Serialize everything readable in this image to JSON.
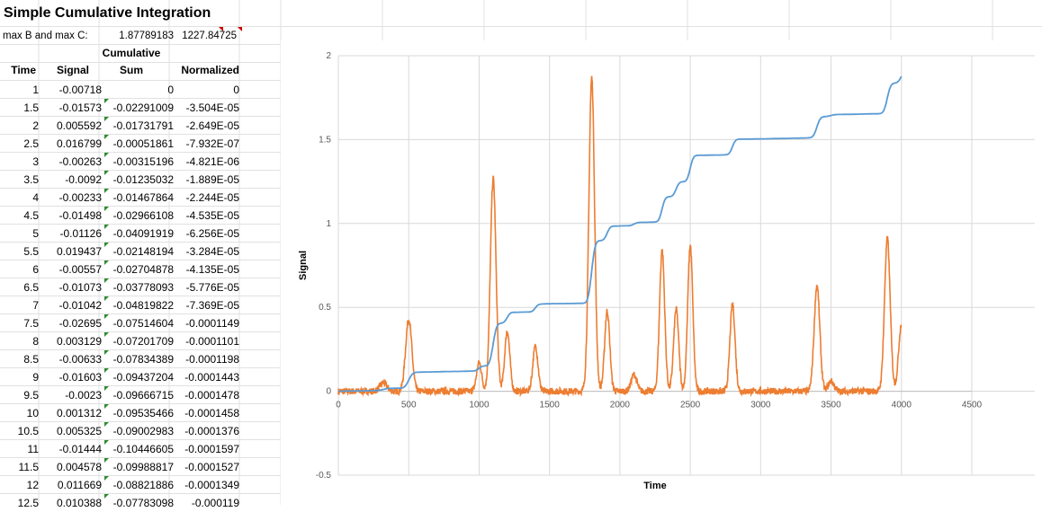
{
  "sheet": {
    "title": "Simple Cumulative Integration",
    "max_label": "max B and max C:",
    "max_b": "1.87789183",
    "max_c": "1227.84725",
    "headers": {
      "time": "Time",
      "signal": "Signal",
      "cum_line1": "Cumulative",
      "cum_line2": "Sum",
      "normalized": "Normalized"
    },
    "rows": [
      [
        "1",
        "-0.00718",
        "0",
        "0"
      ],
      [
        "1.5",
        "-0.01573",
        "-0.02291009",
        "-3.504E-05"
      ],
      [
        "2",
        "0.005592",
        "-0.01731791",
        "-2.649E-05"
      ],
      [
        "2.5",
        "0.016799",
        "-0.00051861",
        "-7.932E-07"
      ],
      [
        "3",
        "-0.00263",
        "-0.00315196",
        "-4.821E-06"
      ],
      [
        "3.5",
        "-0.0092",
        "-0.01235032",
        "-1.889E-05"
      ],
      [
        "4",
        "-0.00233",
        "-0.01467864",
        "-2.244E-05"
      ],
      [
        "4.5",
        "-0.01498",
        "-0.02966108",
        "-4.535E-05"
      ],
      [
        "5",
        "-0.01126",
        "-0.04091919",
        "-6.256E-05"
      ],
      [
        "5.5",
        "0.019437",
        "-0.02148194",
        "-3.284E-05"
      ],
      [
        "6",
        "-0.00557",
        "-0.02704878",
        "-4.135E-05"
      ],
      [
        "6.5",
        "-0.01073",
        "-0.03778093",
        "-5.776E-05"
      ],
      [
        "7",
        "-0.01042",
        "-0.04819822",
        "-7.369E-05"
      ],
      [
        "7.5",
        "-0.02695",
        "-0.07514604",
        "-0.0001149"
      ],
      [
        "8",
        "0.003129",
        "-0.07201709",
        "-0.0001101"
      ],
      [
        "8.5",
        "-0.00633",
        "-0.07834389",
        "-0.0001198"
      ],
      [
        "9",
        "-0.01603",
        "-0.09437204",
        "-0.0001443"
      ],
      [
        "9.5",
        "-0.0023",
        "-0.09666715",
        "-0.0001478"
      ],
      [
        "10",
        "0.001312",
        "-0.09535466",
        "-0.0001458"
      ],
      [
        "10.5",
        "0.005325",
        "-0.09002983",
        "-0.0001376"
      ],
      [
        "11",
        "-0.01444",
        "-0.10446605",
        "-0.0001597"
      ],
      [
        "11.5",
        "0.004578",
        "-0.09988817",
        "-0.0001527"
      ],
      [
        "12",
        "0.011669",
        "-0.08821886",
        "-0.0001349"
      ],
      [
        "12.5",
        "0.010388",
        "-0.07783098",
        "-0.000119"
      ]
    ]
  },
  "colors": {
    "signal_series": "#ed7d31",
    "normalized_series": "#5b9bd5",
    "gridline": "#d9d9d9",
    "sheet_grid": "#e1e1e1",
    "comment_marker": "#2e8b2e",
    "note_marker": "#d00000"
  },
  "chart_data": {
    "type": "line",
    "title": "",
    "xlabel": "Time",
    "ylabel": "Signal",
    "xlim": [
      0,
      4500
    ],
    "ylim": [
      -0.5,
      2
    ],
    "x_ticks": [
      "0",
      "500",
      "1000",
      "1500",
      "2000",
      "2500",
      "3000",
      "3500",
      "4000",
      "4500"
    ],
    "y_ticks": [
      "-0.5",
      "0",
      "0.5",
      "1",
      "1.5",
      "2"
    ],
    "grid": "vertical and horizontal major",
    "legend": "none",
    "series": [
      {
        "color": "#ed7d31",
        "noise_amplitude": 0.02,
        "baseline": 0,
        "peaks": [
          {
            "center": 320,
            "height": 0.05,
            "width": 25
          },
          {
            "center": 500,
            "height": 0.43,
            "width": 22
          },
          {
            "center": 1000,
            "height": 0.17,
            "width": 18
          },
          {
            "center": 1100,
            "height": 1.27,
            "width": 20
          },
          {
            "center": 1200,
            "height": 0.36,
            "width": 18
          },
          {
            "center": 1400,
            "height": 0.27,
            "width": 18
          },
          {
            "center": 1800,
            "height": 1.87,
            "width": 20
          },
          {
            "center": 1910,
            "height": 0.48,
            "width": 18
          },
          {
            "center": 2100,
            "height": 0.1,
            "width": 20
          },
          {
            "center": 2300,
            "height": 0.84,
            "width": 18
          },
          {
            "center": 2400,
            "height": 0.49,
            "width": 18
          },
          {
            "center": 2500,
            "height": 0.87,
            "width": 18
          },
          {
            "center": 2800,
            "height": 0.52,
            "width": 18
          },
          {
            "center": 3400,
            "height": 0.63,
            "width": 20
          },
          {
            "center": 3500,
            "height": 0.06,
            "width": 20
          },
          {
            "center": 3900,
            "height": 0.91,
            "width": 20
          },
          {
            "center": 4000,
            "height": 0.4,
            "width": 20
          }
        ],
        "end_x": 4000
      },
      {
        "color": "#5b9bd5",
        "cumulative_of_series": 0,
        "max_value": 1.877
      }
    ]
  }
}
